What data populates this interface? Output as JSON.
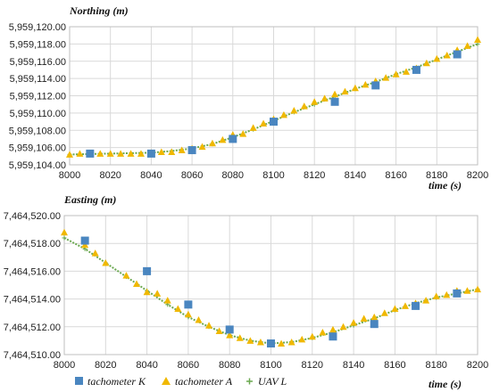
{
  "chart_data": [
    {
      "type": "scatter",
      "title": "Northing (m)",
      "xlabel": "time (s)",
      "xlim": [
        8000,
        8200
      ],
      "ylim": [
        5959104,
        5959120
      ],
      "x_ticks": [
        8000,
        8020,
        8040,
        8060,
        8080,
        8100,
        8120,
        8140,
        8160,
        8180,
        8200
      ],
      "y_ticks": [
        5959104,
        5959106,
        5959108,
        5959110,
        5959112,
        5959114,
        5959116,
        5959118,
        5959120
      ],
      "x_tick_labels": [
        "8000",
        "8020",
        "8040",
        "8060",
        "8080",
        "8100",
        "8120",
        "8140",
        "8160",
        "8180",
        "8200"
      ],
      "y_tick_labels": [
        "5,959,104.00",
        "5,959,106.00",
        "5,959,108.00",
        "5,959,110.00",
        "5,959,112.00",
        "5,959,114.00",
        "5,959,116.00",
        "5,959,118.00",
        "5,959,120.00"
      ],
      "grid": true,
      "series": [
        {
          "name": "tachometer K",
          "marker": "square",
          "color": "#4a86c0",
          "x": [
            8010,
            8040,
            8060,
            8080,
            8100,
            8130,
            8150,
            8170,
            8190
          ],
          "y": [
            5959105.3,
            5959105.3,
            5959105.7,
            5959107.0,
            5959109.0,
            5959111.3,
            5959113.2,
            5959115.0,
            5959116.8
          ]
        },
        {
          "name": "tachometer A",
          "marker": "triangle",
          "color": "#f0b800",
          "x": [
            8000,
            8005,
            8010,
            8015,
            8020,
            8025,
            8030,
            8035,
            8040,
            8045,
            8050,
            8055,
            8060,
            8065,
            8070,
            8075,
            8080,
            8085,
            8090,
            8095,
            8100,
            8105,
            8110,
            8115,
            8120,
            8125,
            8130,
            8135,
            8140,
            8145,
            8150,
            8155,
            8160,
            8165,
            8170,
            8175,
            8180,
            8185,
            8190,
            8195,
            8200
          ],
          "y": [
            5959105.2,
            5959105.3,
            5959105.3,
            5959105.3,
            5959105.3,
            5959105.3,
            5959105.3,
            5959105.3,
            5959105.4,
            5959105.5,
            5959105.5,
            5959105.7,
            5959105.9,
            5959106.1,
            5959106.5,
            5959106.9,
            5959107.5,
            5959107.6,
            5959108.3,
            5959108.8,
            5959109.3,
            5959109.8,
            5959110.3,
            5959110.8,
            5959111.3,
            5959111.7,
            5959112.2,
            5959112.5,
            5959112.9,
            5959113.3,
            5959113.7,
            5959114.1,
            5959114.5,
            5959114.8,
            5959115.2,
            5959115.8,
            5959116.3,
            5959116.7,
            5959117.3,
            5959117.8,
            5959118.5
          ]
        },
        {
          "name": "UAV L",
          "marker": "plus",
          "color": "#6aa84f",
          "x": [
            8000,
            8020,
            8040,
            8050,
            8060,
            8070,
            8080,
            8090,
            8100,
            8110,
            8120,
            8130,
            8140,
            8150,
            8160,
            8170,
            8180,
            8190,
            8200
          ],
          "y": [
            5959105.2,
            5959105.3,
            5959105.4,
            5959105.6,
            5959105.9,
            5959106.4,
            5959107.2,
            5959108.1,
            5959109.1,
            5959110.1,
            5959111.0,
            5959111.9,
            5959112.8,
            5959113.6,
            5959114.5,
            5959115.3,
            5959116.2,
            5959117.1,
            5959118.0
          ]
        }
      ]
    },
    {
      "type": "scatter",
      "title": "Easting (m)",
      "xlabel": "time (s)",
      "xlim": [
        8000,
        8200
      ],
      "ylim": [
        7464510,
        7464520
      ],
      "x_ticks": [
        8000,
        8020,
        8040,
        8060,
        8080,
        8100,
        8120,
        8140,
        8160,
        8180,
        8200
      ],
      "y_ticks": [
        7464510,
        7464512,
        7464514,
        7464516,
        7464518,
        7464520
      ],
      "x_tick_labels": [
        "8000",
        "8020",
        "8040",
        "8060",
        "8080",
        "8100",
        "8120",
        "8140",
        "8160",
        "8180",
        "8200"
      ],
      "y_tick_labels": [
        "7,464,510.00",
        "7,464,512.00",
        "7,464,514.00",
        "7,464,516.00",
        "7,464,518.00",
        "7,464,520.00"
      ],
      "grid": true,
      "series": [
        {
          "name": "tachometer K",
          "marker": "square",
          "color": "#4a86c0",
          "x": [
            8010,
            8040,
            8060,
            8080,
            8100,
            8130,
            8150,
            8170,
            8190
          ],
          "y": [
            7464518.2,
            7464516.0,
            7464513.6,
            7464511.8,
            7464510.8,
            7464511.3,
            7464512.2,
            7464513.5,
            7464514.4
          ]
        },
        {
          "name": "tachometer A",
          "marker": "triangle",
          "color": "#f0b800",
          "x": [
            8000,
            8010,
            8015,
            8020,
            8030,
            8035,
            8040,
            8045,
            8050,
            8055,
            8060,
            8065,
            8070,
            8075,
            8080,
            8085,
            8090,
            8095,
            8100,
            8105,
            8110,
            8115,
            8120,
            8125,
            8130,
            8135,
            8140,
            8145,
            8150,
            8155,
            8160,
            8165,
            8170,
            8175,
            8180,
            8185,
            8190,
            8195,
            8200
          ],
          "y": [
            7464518.8,
            7464517.9,
            7464517.3,
            7464516.6,
            7464515.7,
            7464515.1,
            7464514.5,
            7464514.4,
            7464513.9,
            7464513.3,
            7464512.9,
            7464512.5,
            7464512.1,
            7464511.7,
            7464511.4,
            7464511.2,
            7464511.0,
            7464510.9,
            7464510.8,
            7464510.8,
            7464510.9,
            7464511.1,
            7464511.3,
            7464511.6,
            7464511.8,
            7464512.0,
            7464512.3,
            7464512.6,
            7464512.7,
            7464513.0,
            7464513.3,
            7464513.5,
            7464513.7,
            7464513.9,
            7464514.2,
            7464514.3,
            7464514.6,
            7464514.6,
            7464514.7
          ]
        },
        {
          "name": "UAV L",
          "marker": "plus",
          "color": "#6aa84f",
          "x": [
            8000,
            8010,
            8020,
            8030,
            8040,
            8050,
            8060,
            8070,
            8080,
            8090,
            8100,
            8110,
            8120,
            8130,
            8140,
            8150,
            8160,
            8170,
            8180,
            8190,
            8200
          ],
          "y": [
            7464518.4,
            7464517.6,
            7464516.6,
            7464515.6,
            7464514.6,
            7464513.6,
            7464512.7,
            7464512.0,
            7464511.4,
            7464511.0,
            7464510.8,
            7464510.9,
            7464511.2,
            7464511.6,
            7464512.1,
            7464512.6,
            7464513.2,
            7464513.7,
            7464514.1,
            7464514.4,
            7464514.7
          ]
        }
      ]
    }
  ],
  "legend": {
    "position": "bottom-center",
    "items": [
      {
        "label": "tachometer K",
        "marker": "square",
        "color": "#4a86c0"
      },
      {
        "label": "tachometer A",
        "marker": "triangle",
        "color": "#f0b800"
      },
      {
        "label": "UAV L",
        "marker": "plus",
        "color": "#6aa84f"
      }
    ]
  }
}
